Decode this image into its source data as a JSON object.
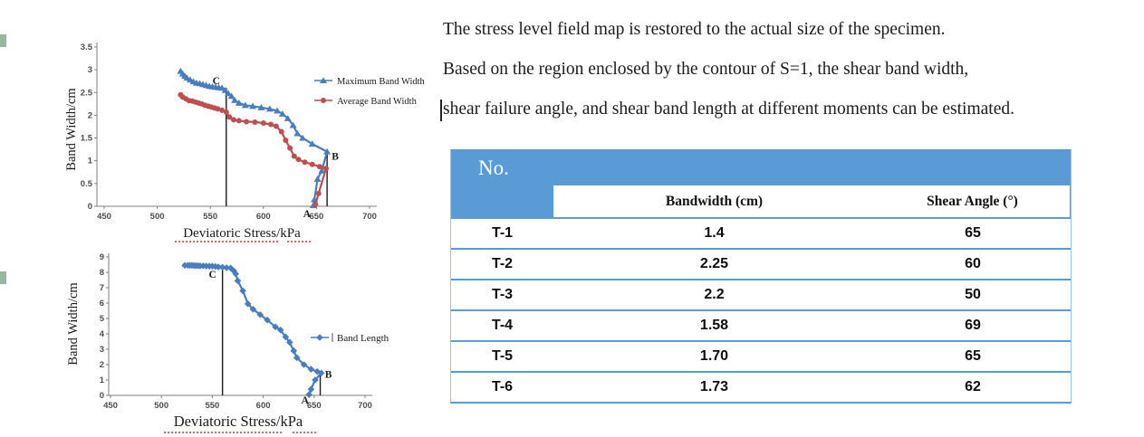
{
  "paragraphs": [
    "The stress level field map is restored to the actual size of the specimen.",
    "Based on the region enclosed by the contour of S=1, the shear band width,",
    "shear failure angle, and shear band length at different moments can be estimated."
  ],
  "table": {
    "corner_header": "No.",
    "columns": [
      "Bandwidth (cm)",
      "Shear Angle (°)"
    ],
    "rows": [
      {
        "no": "T-1",
        "bandwidth": "1.4",
        "shear_angle": "65"
      },
      {
        "no": "T-2",
        "bandwidth": "2.25",
        "shear_angle": "60"
      },
      {
        "no": "T-3",
        "bandwidth": "2.2",
        "shear_angle": "50"
      },
      {
        "no": "T-4",
        "bandwidth": "1.58",
        "shear_angle": "69"
      },
      {
        "no": "T-5",
        "bandwidth": "1.70",
        "shear_angle": "65"
      },
      {
        "no": "T-6",
        "bandwidth": "1.73",
        "shear_angle": "62"
      }
    ],
    "header_bg": "#5B9BD5",
    "border_color": "#5B9BD5",
    "light_border": "#9DC3E6"
  },
  "chart_data": [
    {
      "type": "line",
      "title": "",
      "xlabel": "Deviatoric Stress/kPa",
      "ylabel": "Band Width/cm",
      "xlim": [
        450,
        700
      ],
      "ylim": [
        0,
        3.5
      ],
      "xticks": [
        450,
        500,
        550,
        600,
        650,
        700
      ],
      "yticks": [
        0,
        0.5,
        1,
        1.5,
        2,
        2.5,
        3,
        3.5
      ],
      "grid": false,
      "legend_position": "right-inside",
      "series": [
        {
          "name": "Maximum Band Width",
          "color": "#4a7dbd",
          "marker": "triangle",
          "points": [
            [
              522,
              2.97
            ],
            [
              524,
              2.91
            ],
            [
              526,
              2.86
            ],
            [
              528,
              2.82
            ],
            [
              531,
              2.78
            ],
            [
              534,
              2.74
            ],
            [
              537,
              2.71
            ],
            [
              540,
              2.7
            ],
            [
              543,
              2.68
            ],
            [
              546,
              2.66
            ],
            [
              549,
              2.64
            ],
            [
              552,
              2.63
            ],
            [
              555,
              2.62
            ],
            [
              558,
              2.61
            ],
            [
              561,
              2.6
            ],
            [
              564,
              2.55
            ],
            [
              567,
              2.48
            ],
            [
              570,
              2.42
            ],
            [
              573,
              2.33
            ],
            [
              577,
              2.27
            ],
            [
              583,
              2.22
            ],
            [
              590,
              2.2
            ],
            [
              598,
              2.17
            ],
            [
              606,
              2.14
            ],
            [
              613,
              2.1
            ],
            [
              618,
              2.03
            ],
            [
              623,
              1.93
            ],
            [
              628,
              1.78
            ],
            [
              632,
              1.6
            ],
            [
              637,
              1.5
            ],
            [
              646,
              1.37
            ],
            [
              660,
              1.2
            ],
            [
              655,
              0.78
            ],
            [
              651,
              0.6
            ],
            [
              648,
              0.15
            ],
            [
              647,
              0.02
            ]
          ]
        },
        {
          "name": "Average Band Width",
          "color": "#bf4e4e",
          "marker": "circle",
          "points": [
            [
              522,
              2.45
            ],
            [
              524,
              2.4
            ],
            [
              527,
              2.36
            ],
            [
              530,
              2.32
            ],
            [
              533,
              2.31
            ],
            [
              536,
              2.29
            ],
            [
              539,
              2.27
            ],
            [
              542,
              2.25
            ],
            [
              545,
              2.22
            ],
            [
              548,
              2.2
            ],
            [
              551,
              2.18
            ],
            [
              554,
              2.16
            ],
            [
              557,
              2.14
            ],
            [
              561,
              2.11
            ],
            [
              565,
              2.07
            ],
            [
              568,
              1.96
            ],
            [
              572,
              1.9
            ],
            [
              577,
              1.88
            ],
            [
              584,
              1.86
            ],
            [
              592,
              1.85
            ],
            [
              600,
              1.83
            ],
            [
              607,
              1.8
            ],
            [
              612,
              1.76
            ],
            [
              617,
              1.64
            ],
            [
              621,
              1.45
            ],
            [
              625,
              1.28
            ],
            [
              629,
              1.1
            ],
            [
              633,
              1.03
            ],
            [
              639,
              0.97
            ],
            [
              646,
              0.92
            ],
            [
              653,
              0.87
            ],
            [
              659,
              0.83
            ],
            [
              652,
              0.28
            ],
            [
              649,
              0.04
            ]
          ]
        }
      ],
      "annotations": [
        {
          "type": "vline",
          "label": "C",
          "x": 565,
          "y_top": 2.6
        },
        {
          "type": "vline",
          "label": "B",
          "x": 660,
          "y_top": 1.2
        },
        {
          "type": "label",
          "label": "A",
          "x": 641
        }
      ]
    },
    {
      "type": "line",
      "title": "",
      "xlabel": "Deviatoric Stress/kPa",
      "ylabel": "Band Width/cm",
      "xlim": [
        450,
        700
      ],
      "ylim": [
        0,
        9
      ],
      "xticks": [
        450,
        500,
        550,
        600,
        650,
        700
      ],
      "yticks": [
        0,
        1,
        2,
        3,
        4,
        5,
        6,
        7,
        8,
        9
      ],
      "grid": false,
      "legend_position": "right-inside",
      "series": [
        {
          "name": "Band Length",
          "color": "#4a7dbd",
          "marker": "diamond",
          "points": [
            [
              523,
              8.45
            ],
            [
              526,
              8.45
            ],
            [
              528,
              8.45
            ],
            [
              530,
              8.45
            ],
            [
              532,
              8.44
            ],
            [
              534,
              8.43
            ],
            [
              536,
              8.43
            ],
            [
              538,
              8.42
            ],
            [
              541,
              8.42
            ],
            [
              544,
              8.41
            ],
            [
              547,
              8.4
            ],
            [
              550,
              8.4
            ],
            [
              553,
              8.38
            ],
            [
              556,
              8.35
            ],
            [
              560,
              8.33
            ],
            [
              564,
              8.3
            ],
            [
              568,
              8.28
            ],
            [
              571,
              8.1
            ],
            [
              573,
              7.9
            ],
            [
              575,
              7.45
            ],
            [
              580,
              6.8
            ],
            [
              585,
              5.95
            ],
            [
              590,
              5.6
            ],
            [
              597,
              5.25
            ],
            [
              604,
              4.9
            ],
            [
              612,
              4.45
            ],
            [
              617,
              4.25
            ],
            [
              622,
              3.8
            ],
            [
              626,
              3.45
            ],
            [
              630,
              2.9
            ],
            [
              633,
              2.45
            ],
            [
              640,
              2.0
            ],
            [
              647,
              1.7
            ],
            [
              653,
              1.55
            ],
            [
              657,
              1.45
            ],
            [
              651,
              1.0
            ],
            [
              647,
              0.4
            ],
            [
              645,
              0.05
            ]
          ]
        }
      ],
      "annotations": [
        {
          "type": "vline",
          "label": "C",
          "x": 560,
          "y_top": 8.35
        },
        {
          "type": "vline",
          "label": "B",
          "x": 656,
          "y_top": 1.5
        },
        {
          "type": "label",
          "label": "A",
          "x": 642
        }
      ]
    }
  ]
}
